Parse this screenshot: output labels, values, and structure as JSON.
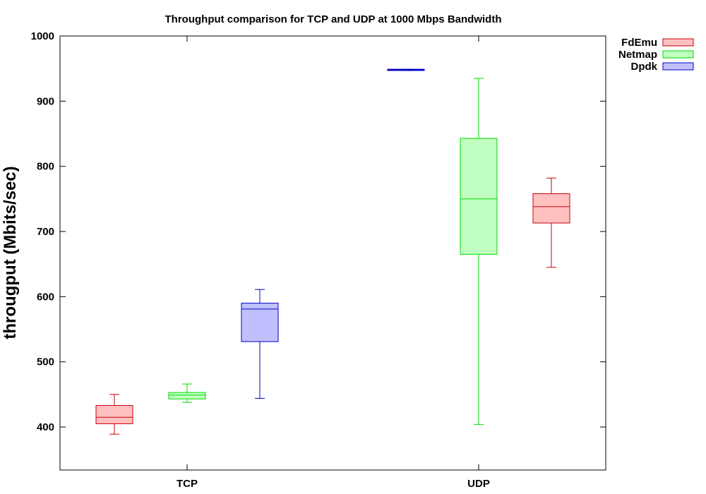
{
  "chart_data": {
    "type": "boxplot",
    "title": "Throughput comparison for TCP and UDP at 1000 Mbps Bandwidth",
    "ylabel": "througput (Mbits/sec)",
    "xlabel": "",
    "ylim": [
      334,
      1000
    ],
    "yticks": [
      400,
      500,
      600,
      700,
      800,
      900,
      1000
    ],
    "categories": [
      "TCP",
      "UDP"
    ],
    "legend": {
      "position": "top-right",
      "entries": [
        {
          "name": "FdEmu",
          "stroke": "#c8000a",
          "fill": "#ffc0c0"
        },
        {
          "name": "Netmap",
          "stroke": "#00dc00",
          "fill": "#c0ffc0"
        },
        {
          "name": "Dpdk",
          "stroke": "#0000c8",
          "fill": "#c0c0ff"
        }
      ]
    },
    "boxes": [
      {
        "category": "TCP",
        "series": "FdEmu",
        "min": 389,
        "q1": 405,
        "median": 415,
        "q3": 433,
        "max": 450
      },
      {
        "category": "TCP",
        "series": "Netmap",
        "min": 438,
        "q1": 443,
        "median": 449,
        "q3": 453,
        "max": 466
      },
      {
        "category": "TCP",
        "series": "Dpdk",
        "min": 444,
        "q1": 531,
        "median": 581,
        "q3": 590,
        "max": 611
      },
      {
        "category": "UDP",
        "series": "Dpdk",
        "min": 947,
        "q1": 947,
        "median": 948,
        "q3": 949,
        "max": 949
      },
      {
        "category": "UDP",
        "series": "Netmap",
        "min": 404,
        "q1": 665,
        "median": 750,
        "q3": 843,
        "max": 935
      },
      {
        "category": "UDP",
        "series": "FdEmu",
        "min": 645,
        "q1": 713,
        "median": 738,
        "q3": 758,
        "max": 782
      }
    ]
  }
}
